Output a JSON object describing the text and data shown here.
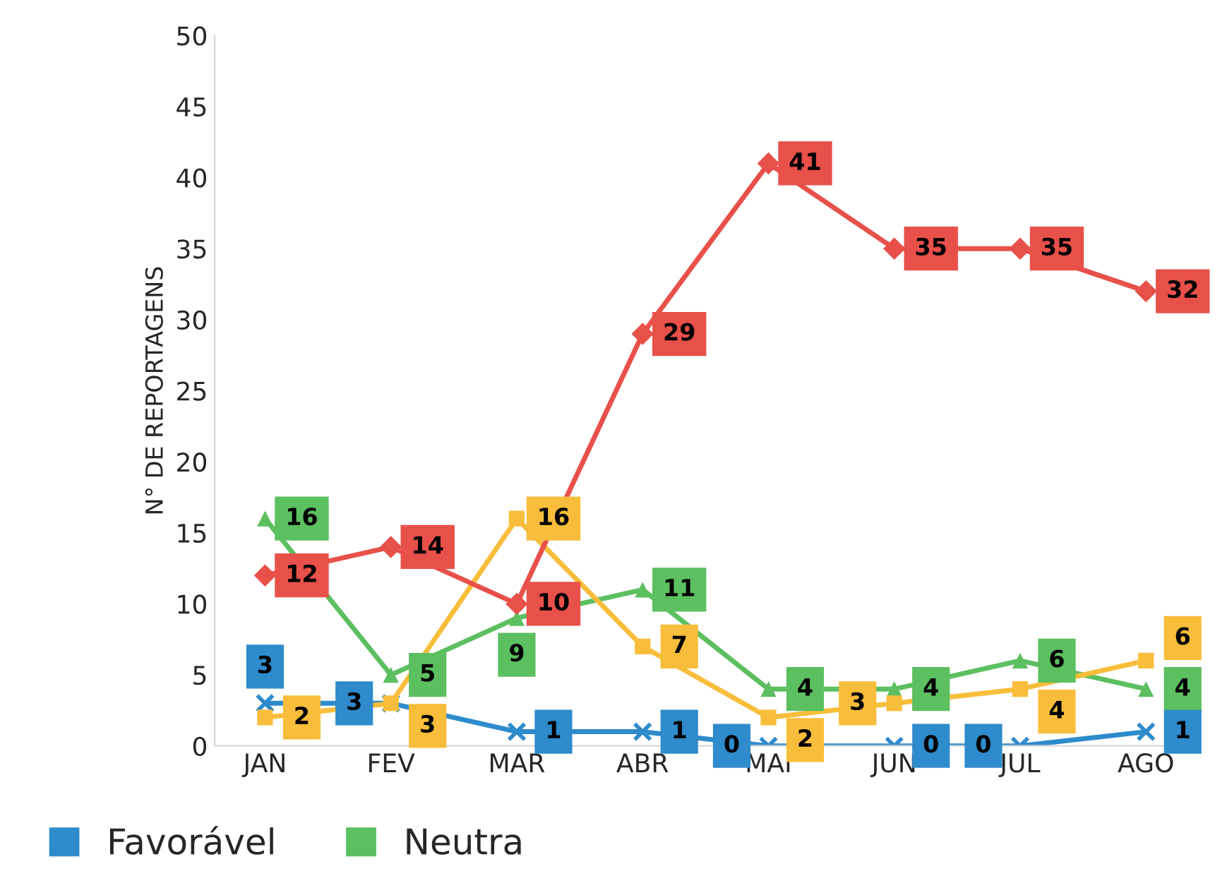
{
  "chart_data": {
    "type": "line",
    "ylabel": "N° DE REPORTAGENS",
    "categories": [
      "JAN",
      "FEV",
      "MAR",
      "ABR",
      "MAI",
      "JUN",
      "JUL",
      "AGO"
    ],
    "series": [
      {
        "name": "Favorável",
        "color": "#2e8bcc",
        "marker": "cross",
        "values": [
          3,
          3,
          1,
          1,
          0,
          0,
          0,
          1
        ]
      },
      {
        "name": "Neutra",
        "color": "#5cbf60",
        "marker": "triangle",
        "values": [
          16,
          5,
          9,
          11,
          4,
          4,
          6,
          4
        ]
      },
      {
        "color": "#f8bd3a",
        "marker": "square",
        "values": [
          2,
          3,
          16,
          7,
          2,
          3,
          4,
          6
        ]
      },
      {
        "color": "#e8504a",
        "marker": "diamond",
        "values": [
          12,
          14,
          10,
          29,
          41,
          35,
          35,
          32
        ]
      }
    ],
    "ylim": [
      0,
      50
    ],
    "yticks": [
      0,
      5,
      10,
      15,
      20,
      25,
      30,
      35,
      40,
      45,
      50
    ],
    "grid": false,
    "legend": "bottom left",
    "data_labels": true,
    "line_style": "solid"
  }
}
